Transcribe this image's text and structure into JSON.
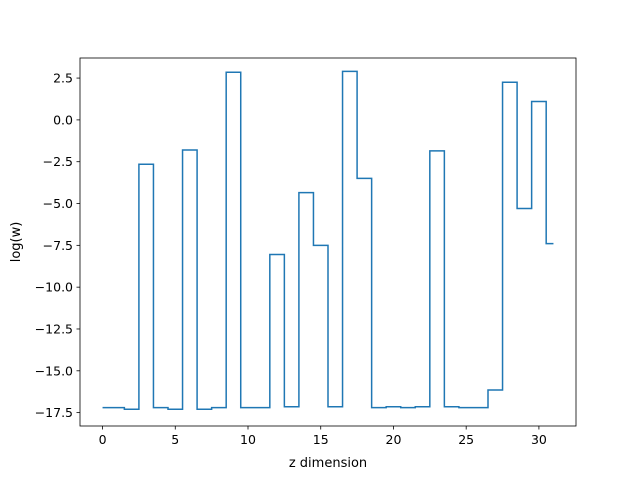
{
  "chart_data": {
    "type": "line",
    "drawstyle": "steps-mid",
    "title": "",
    "xlabel": "z dimension",
    "ylabel": "log(w)",
    "xlim": [
      -1.55,
      32.55
    ],
    "ylim": [
      -18.3,
      3.7
    ],
    "xticks": [
      0,
      5,
      10,
      15,
      20,
      25,
      30
    ],
    "xtick_labels": [
      "0",
      "5",
      "10",
      "15",
      "20",
      "25",
      "30"
    ],
    "yticks": [
      2.5,
      0.0,
      -2.5,
      -5.0,
      -7.5,
      -10.0,
      -12.5,
      -15.0,
      -17.5
    ],
    "ytick_labels": [
      "2.5",
      "0.0",
      "−2.5",
      "−5.0",
      "−7.5",
      "−10.0",
      "−12.5",
      "−15.0",
      "−17.5"
    ],
    "grid": false,
    "legend": "none",
    "series": [
      {
        "color": "#1f77b4",
        "x": [
          0,
          1,
          2,
          3,
          4,
          5,
          6,
          7,
          8,
          9,
          10,
          11,
          12,
          13,
          14,
          15,
          16,
          17,
          18,
          19,
          20,
          21,
          22,
          23,
          24,
          25,
          26,
          27,
          28,
          29,
          30,
          31
        ],
        "values": [
          -17.2,
          -17.2,
          -17.3,
          -2.65,
          -17.2,
          -17.3,
          -1.8,
          -17.3,
          -17.2,
          2.85,
          -17.2,
          -17.2,
          -8.05,
          -17.15,
          -4.35,
          -7.5,
          -17.15,
          2.9,
          -3.5,
          -17.2,
          -17.15,
          -17.2,
          -17.15,
          -1.85,
          -17.15,
          -17.2,
          -17.2,
          -16.15,
          2.25,
          -5.3,
          1.1,
          -7.4
        ]
      }
    ]
  }
}
